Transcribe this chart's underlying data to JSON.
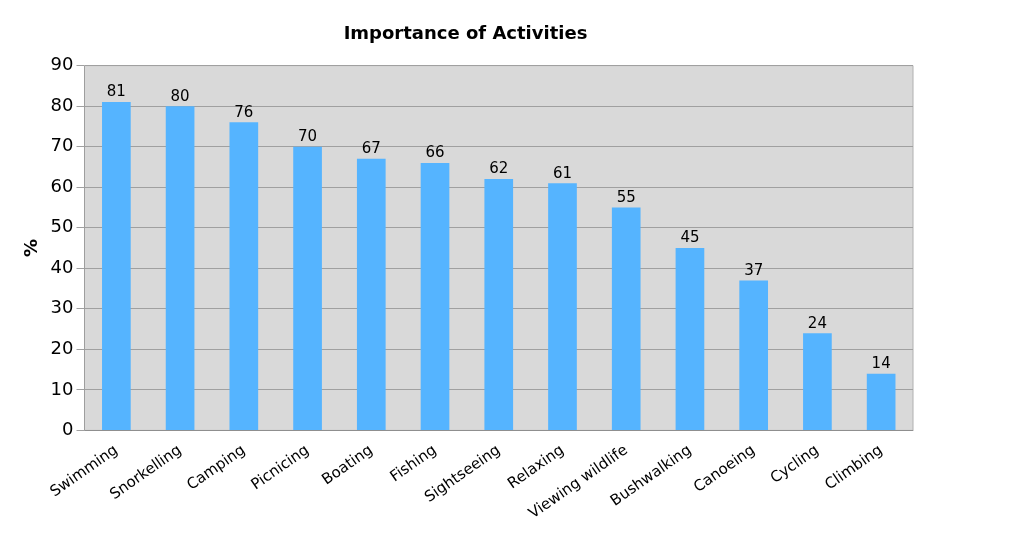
{
  "chart_data": {
    "type": "bar",
    "title": "Importance of Activities",
    "ylabel": "%",
    "categories": [
      "Swimming",
      "Snorkelling",
      "Camping",
      "Picnicing",
      "Boating",
      "Fishing",
      "Sightseeing",
      "Relaxing",
      "Viewing wildlife",
      "Bushwalking",
      "Canoeing",
      "Cycling",
      "Climbing"
    ],
    "values": [
      81,
      80,
      76,
      70,
      67,
      66,
      62,
      61,
      55,
      45,
      37,
      24,
      14
    ],
    "color": "#55b4ff",
    "ylim": [
      0,
      90
    ],
    "yticks": [
      0,
      10,
      20,
      30,
      40,
      50,
      60,
      70,
      80,
      90
    ],
    "grid": "y",
    "legend": false,
    "data_labels": true
  }
}
